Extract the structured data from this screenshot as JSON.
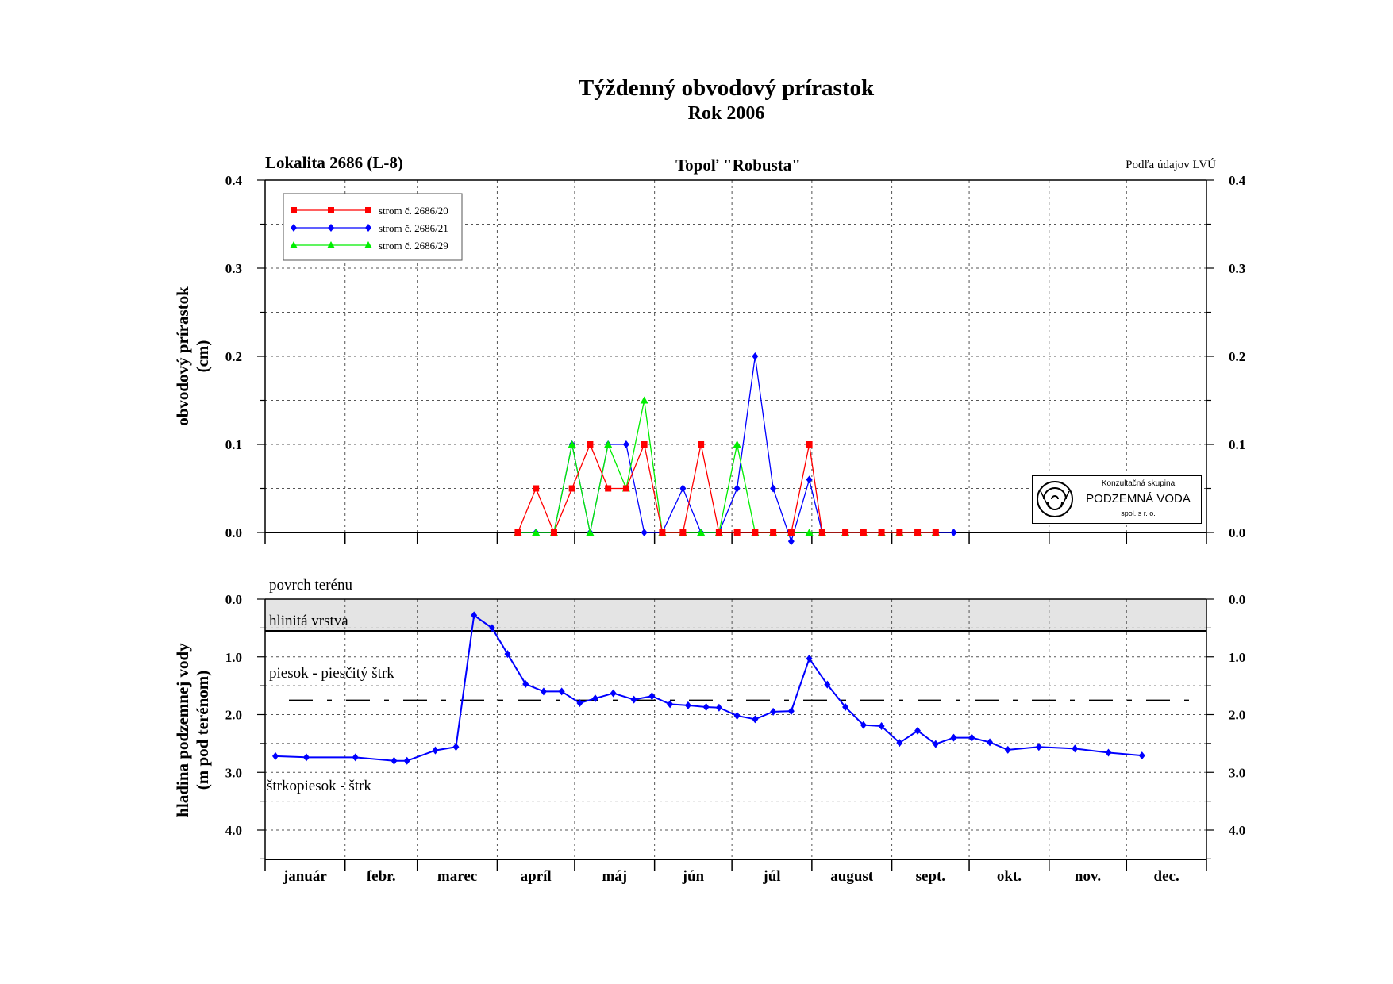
{
  "title": "Týždenný obvodový prírastok",
  "subtitle": "Rok 2006",
  "locality": "Lokalita 2686 (L-8)",
  "species": "Topoľ \"Robusta\"",
  "source": "Podľa údajov LVÚ",
  "logo": {
    "line1": "Konzultačná skupina",
    "line2": "PODZEMNÁ VODA",
    "line3": "spol. s r. o."
  },
  "chart_data": [
    {
      "type": "line",
      "ylabel": [
        "obvodový prírastok",
        "(cm)"
      ],
      "ylim": [
        0,
        0.4
      ],
      "yticks": [
        "0.0",
        "0.1",
        "0.2",
        "0.3",
        "0.4"
      ],
      "grid": true,
      "legend_position": "top-left",
      "series": [
        {
          "name": "strom č. 2686/20",
          "color": "#ff0000",
          "marker": "square",
          "points": [
            [
              "2006-04-09",
              0
            ],
            [
              "2006-04-16",
              0.05
            ],
            [
              "2006-04-23",
              0
            ],
            [
              "2006-04-30",
              0.05
            ],
            [
              "2006-05-07",
              0.1
            ],
            [
              "2006-05-14",
              0.05
            ],
            [
              "2006-05-21",
              0.05
            ],
            [
              "2006-05-28",
              0.1
            ],
            [
              "2006-06-04",
              0
            ],
            [
              "2006-06-12",
              0
            ],
            [
              "2006-06-19",
              0.1
            ],
            [
              "2006-06-26",
              0
            ],
            [
              "2006-07-03",
              0
            ],
            [
              "2006-07-10",
              0
            ],
            [
              "2006-07-17",
              0
            ],
            [
              "2006-07-24",
              0
            ],
            [
              "2006-07-31",
              0.1
            ],
            [
              "2006-08-05",
              0
            ],
            [
              "2006-08-14",
              0
            ],
            [
              "2006-08-21",
              0
            ],
            [
              "2006-08-28",
              0
            ],
            [
              "2006-09-04",
              0
            ],
            [
              "2006-09-11",
              0
            ],
            [
              "2006-09-18",
              0
            ]
          ]
        },
        {
          "name": "strom č. 2686/21",
          "color": "#0000ff",
          "marker": "diamond",
          "points": [
            [
              "2006-04-09",
              0
            ],
            [
              "2006-04-16",
              0
            ],
            [
              "2006-04-23",
              0
            ],
            [
              "2006-04-30",
              0.1
            ],
            [
              "2006-05-07",
              0
            ],
            [
              "2006-05-14",
              0.1
            ],
            [
              "2006-05-21",
              0.1
            ],
            [
              "2006-05-28",
              0
            ],
            [
              "2006-06-04",
              0
            ],
            [
              "2006-06-12",
              0.05
            ],
            [
              "2006-06-19",
              0
            ],
            [
              "2006-06-26",
              0
            ],
            [
              "2006-07-03",
              0.05
            ],
            [
              "2006-07-10",
              0.2
            ],
            [
              "2006-07-17",
              0.05
            ],
            [
              "2006-07-24",
              -0.01
            ],
            [
              "2006-07-31",
              0.06
            ],
            [
              "2006-08-05",
              0
            ],
            [
              "2006-08-14",
              0
            ],
            [
              "2006-08-21",
              0
            ],
            [
              "2006-08-28",
              0
            ],
            [
              "2006-09-04",
              0
            ],
            [
              "2006-09-11",
              0
            ],
            [
              "2006-09-18",
              0
            ],
            [
              "2006-09-25",
              0
            ]
          ]
        },
        {
          "name": "strom č. 2686/29",
          "color": "#00ee00",
          "marker": "triangle",
          "points": [
            [
              "2006-04-09",
              0
            ],
            [
              "2006-04-16",
              0
            ],
            [
              "2006-04-23",
              0
            ],
            [
              "2006-04-30",
              0.1
            ],
            [
              "2006-05-07",
              0
            ],
            [
              "2006-05-14",
              0.1
            ],
            [
              "2006-05-21",
              0.05
            ],
            [
              "2006-05-28",
              0.15
            ],
            [
              "2006-06-04",
              0
            ],
            [
              "2006-06-12",
              0
            ],
            [
              "2006-06-19",
              0
            ],
            [
              "2006-06-26",
              0
            ],
            [
              "2006-07-03",
              0.1
            ],
            [
              "2006-07-10",
              0
            ],
            [
              "2006-07-17",
              0
            ],
            [
              "2006-07-24",
              0
            ],
            [
              "2006-07-31",
              0
            ],
            [
              "2006-08-05",
              0
            ],
            [
              "2006-08-14",
              0
            ],
            [
              "2006-08-21",
              0
            ],
            [
              "2006-08-28",
              0
            ],
            [
              "2006-09-04",
              0
            ],
            [
              "2006-09-11",
              0
            ],
            [
              "2006-09-18",
              0
            ]
          ]
        }
      ]
    },
    {
      "type": "line",
      "ylabel": [
        "hladina podzemnej vody",
        "(m pod terénom)"
      ],
      "ylim": [
        0,
        4.5
      ],
      "y_inverted": true,
      "yticks": [
        "0.0",
        "1.0",
        "2.0",
        "3.0",
        "4.0"
      ],
      "grid": true,
      "layers": [
        {
          "label": "povrch terénu",
          "depth": 0
        },
        {
          "label": "hlinitá vrstva",
          "from": 0,
          "to": 0.55
        },
        {
          "label": "piesok - piesčitý štrk",
          "from": 0.55,
          "to": 1.75
        },
        {
          "label": "štrkopiesok - štrk",
          "from": 1.75
        }
      ],
      "series": [
        {
          "color": "#0000ff",
          "marker": "diamond",
          "points": [
            [
              "2006-01-05",
              2.72
            ],
            [
              "2006-01-17",
              2.74
            ],
            [
              "2006-02-05",
              2.74
            ],
            [
              "2006-02-20",
              2.8
            ],
            [
              "2006-02-25",
              2.8
            ],
            [
              "2006-03-08",
              2.62
            ],
            [
              "2006-03-16",
              2.56
            ],
            [
              "2006-03-23",
              0.28
            ],
            [
              "2006-03-30",
              0.5
            ],
            [
              "2006-04-05",
              0.95
            ],
            [
              "2006-04-12",
              1.47
            ],
            [
              "2006-04-19",
              1.6
            ],
            [
              "2006-04-26",
              1.6
            ],
            [
              "2006-05-03",
              1.8
            ],
            [
              "2006-05-09",
              1.72
            ],
            [
              "2006-05-16",
              1.63
            ],
            [
              "2006-05-24",
              1.74
            ],
            [
              "2006-05-31",
              1.68
            ],
            [
              "2006-06-07",
              1.82
            ],
            [
              "2006-06-14",
              1.84
            ],
            [
              "2006-06-21",
              1.87
            ],
            [
              "2006-06-26",
              1.88
            ],
            [
              "2006-07-03",
              2.02
            ],
            [
              "2006-07-10",
              2.08
            ],
            [
              "2006-07-17",
              1.95
            ],
            [
              "2006-07-24",
              1.94
            ],
            [
              "2006-07-31",
              1.03
            ],
            [
              "2006-08-07",
              1.48
            ],
            [
              "2006-08-14",
              1.87
            ],
            [
              "2006-08-21",
              2.18
            ],
            [
              "2006-08-28",
              2.2
            ],
            [
              "2006-09-04",
              2.49
            ],
            [
              "2006-09-11",
              2.28
            ],
            [
              "2006-09-18",
              2.51
            ],
            [
              "2006-09-25",
              2.4
            ],
            [
              "2006-10-02",
              2.4
            ],
            [
              "2006-10-09",
              2.48
            ],
            [
              "2006-10-16",
              2.61
            ],
            [
              "2006-10-28",
              2.56
            ],
            [
              "2006-11-11",
              2.59
            ],
            [
              "2006-11-24",
              2.66
            ],
            [
              "2006-12-07",
              2.71
            ]
          ]
        }
      ]
    }
  ],
  "months": [
    "január",
    "febr.",
    "marec",
    "apríl",
    "máj",
    "jún",
    "júl",
    "august",
    "sept.",
    "okt.",
    "nov.",
    "dec."
  ]
}
